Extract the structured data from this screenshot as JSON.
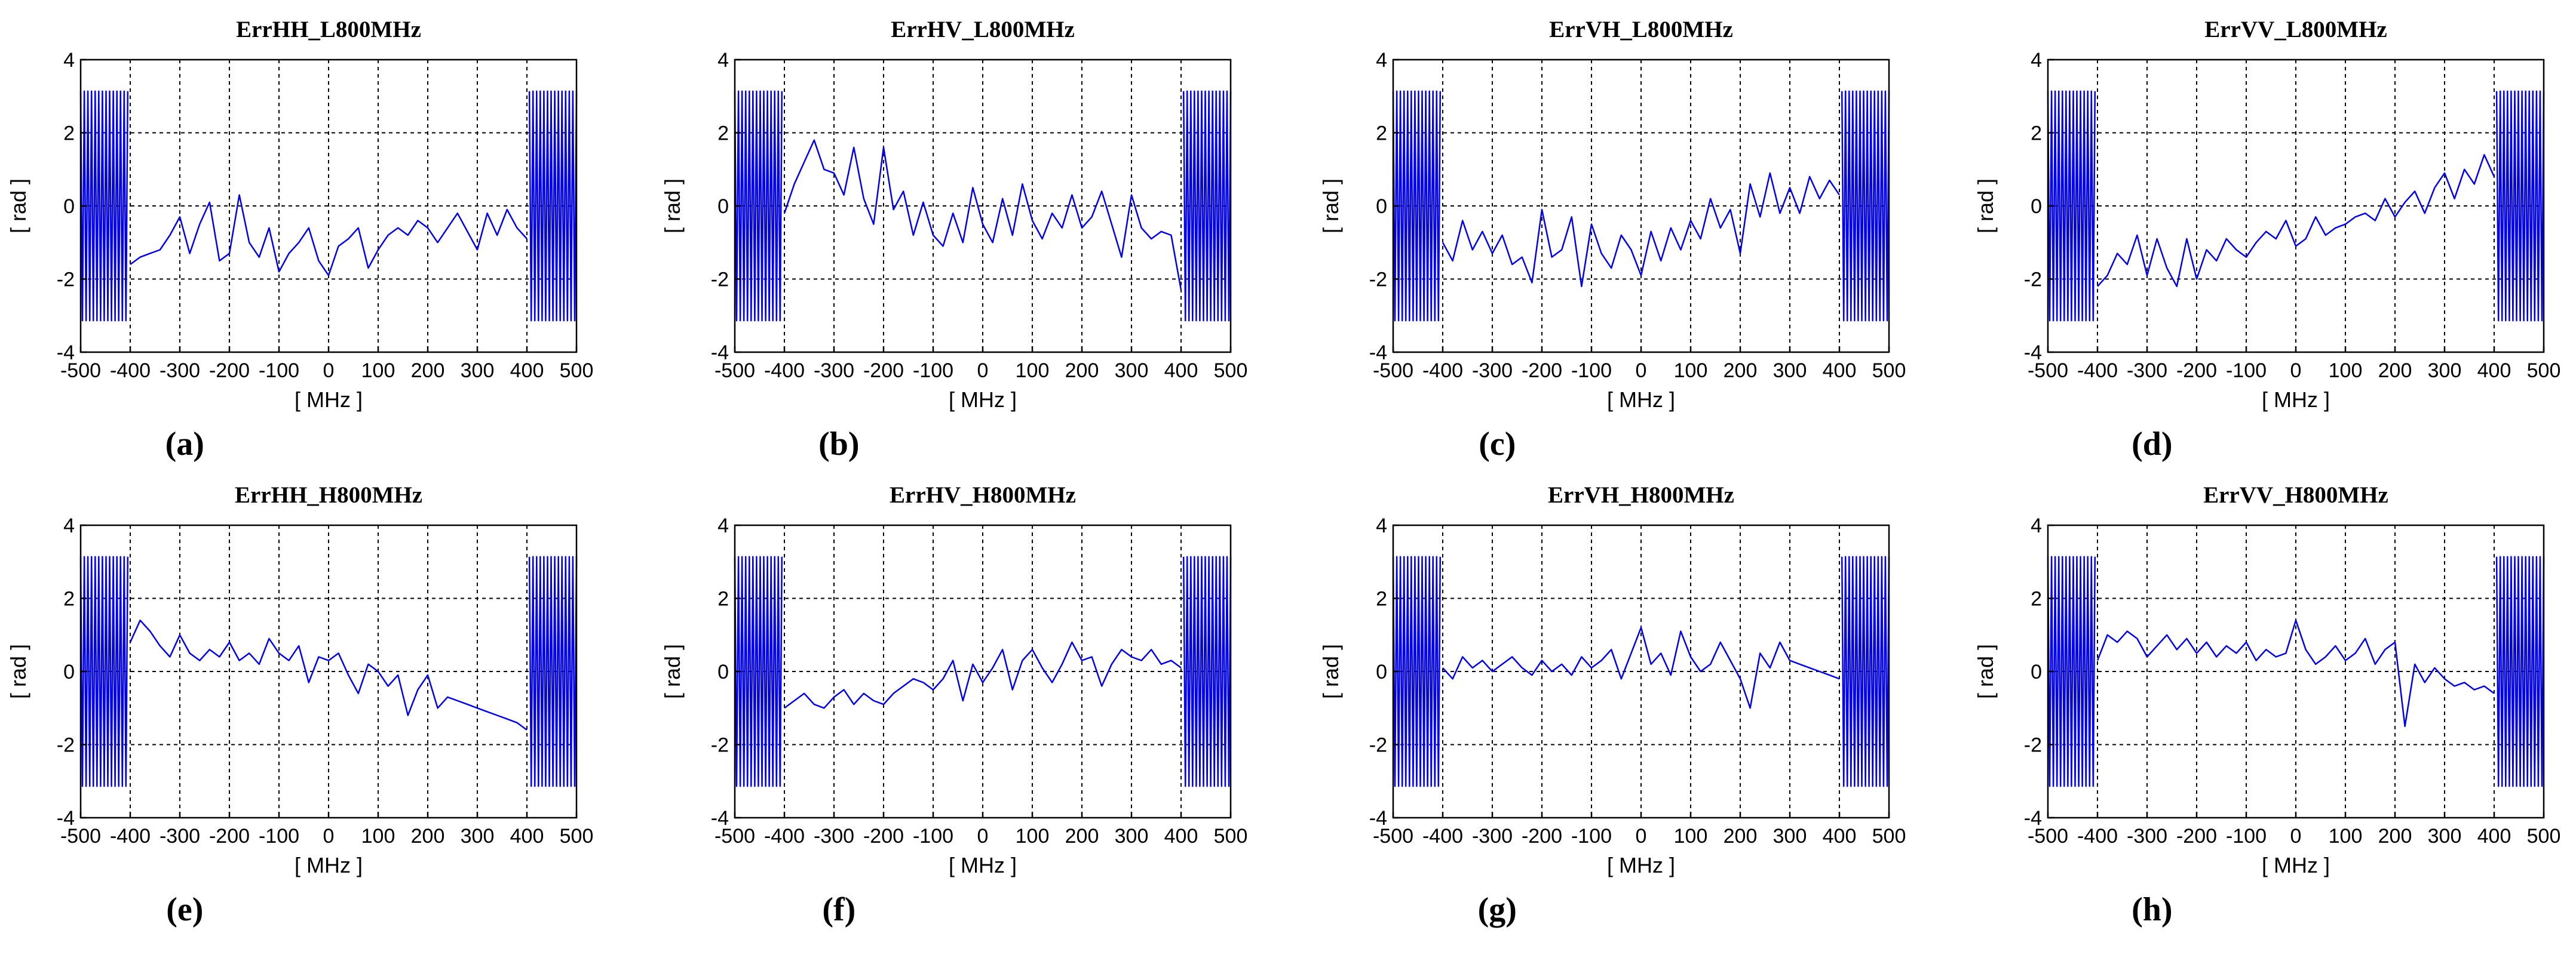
{
  "chart_data": [
    {
      "type": "line",
      "panel": "(a)",
      "title": "ErrHH_L800MHz",
      "xlabel": "[ MHz ]",
      "ylabel": "[ rad ]",
      "xlim": [
        -500,
        500
      ],
      "ylim": [
        -4,
        4
      ],
      "xticks": [
        "-500",
        "-400",
        "-300",
        "-200",
        "-100",
        "0",
        "100",
        "200",
        "300",
        "400",
        "500"
      ],
      "yticks": [
        "-4",
        "-2",
        "0",
        "2",
        "4"
      ],
      "grid": true,
      "series": [
        {
          "name": "ErrHH_L800MHz",
          "color": "#0000ee",
          "wrap": [
            [
              -500,
              -405,
              3.14,
              26
            ],
            [
              405,
              500,
              3.14,
              26
            ]
          ],
          "x": [
            -400,
            -380,
            -360,
            -340,
            -320,
            -300,
            -280,
            -260,
            -240,
            -220,
            -200,
            -180,
            -160,
            -140,
            -120,
            -100,
            -80,
            -60,
            -40,
            -20,
            0,
            20,
            40,
            60,
            80,
            100,
            120,
            140,
            160,
            180,
            200,
            220,
            240,
            260,
            280,
            300,
            320,
            340,
            360,
            380,
            400
          ],
          "y": [
            -1.6,
            -1.4,
            -1.3,
            -1.2,
            -0.8,
            -0.3,
            -1.3,
            -0.5,
            0.1,
            -1.5,
            -1.3,
            0.3,
            -1.0,
            -1.4,
            -0.6,
            -1.8,
            -1.3,
            -1.0,
            -0.6,
            -1.5,
            -1.9,
            -1.1,
            -0.9,
            -0.6,
            -1.7,
            -1.2,
            -0.8,
            -0.6,
            -0.8,
            -0.4,
            -0.6,
            -1.0,
            -0.6,
            -0.2,
            -0.7,
            -1.2,
            -0.2,
            -0.8,
            -0.1,
            -0.6,
            -0.9
          ]
        }
      ]
    },
    {
      "type": "line",
      "panel": "(b)",
      "title": "ErrHV_L800MHz",
      "xlabel": "[ MHz ]",
      "ylabel": "[ rad ]",
      "xlim": [
        -500,
        500
      ],
      "ylim": [
        -4,
        4
      ],
      "xticks": [
        "-500",
        "-400",
        "-300",
        "-200",
        "-100",
        "0",
        "100",
        "200",
        "300",
        "400",
        "500"
      ],
      "yticks": [
        "-4",
        "-2",
        "0",
        "2",
        "4"
      ],
      "grid": true,
      "series": [
        {
          "name": "ErrHV_L800MHz",
          "color": "#0000ee",
          "wrap": [
            [
              -500,
              -405,
              3.14,
              26
            ],
            [
              405,
              500,
              3.14,
              26
            ]
          ],
          "x": [
            -400,
            -380,
            -360,
            -340,
            -320,
            -300,
            -280,
            -260,
            -240,
            -220,
            -200,
            -180,
            -160,
            -140,
            -120,
            -100,
            -80,
            -60,
            -40,
            -20,
            0,
            20,
            40,
            60,
            80,
            100,
            120,
            140,
            160,
            180,
            200,
            220,
            240,
            260,
            280,
            300,
            320,
            340,
            360,
            380,
            400
          ],
          "y": [
            -0.2,
            0.6,
            1.2,
            1.8,
            1.0,
            0.9,
            0.3,
            1.6,
            0.2,
            -0.5,
            1.6,
            -0.1,
            0.4,
            -0.8,
            0.1,
            -0.8,
            -1.1,
            -0.2,
            -1.0,
            0.5,
            -0.5,
            -1.0,
            0.2,
            -0.8,
            0.6,
            -0.4,
            -0.9,
            -0.2,
            -0.6,
            0.3,
            -0.6,
            -0.3,
            0.4,
            -0.5,
            -1.4,
            0.3,
            -0.6,
            -0.9,
            -0.7,
            -0.8,
            -2.3
          ]
        }
      ]
    },
    {
      "type": "line",
      "panel": "(c)",
      "title": "ErrVH_L800MHz",
      "xlabel": "[ MHz ]",
      "ylabel": "[ rad ]",
      "xlim": [
        -500,
        500
      ],
      "ylim": [
        -4,
        4
      ],
      "xticks": [
        "-500",
        "-400",
        "-300",
        "-200",
        "-100",
        "0",
        "100",
        "200",
        "300",
        "400",
        "500"
      ],
      "yticks": [
        "-4",
        "-2",
        "0",
        "2",
        "4"
      ],
      "grid": true,
      "series": [
        {
          "name": "ErrVH_L800MHz",
          "color": "#0000ee",
          "wrap": [
            [
              -500,
              -405,
              3.14,
              26
            ],
            [
              405,
              500,
              3.14,
              26
            ]
          ],
          "x": [
            -400,
            -380,
            -360,
            -340,
            -320,
            -300,
            -280,
            -260,
            -240,
            -220,
            -200,
            -180,
            -160,
            -140,
            -120,
            -100,
            -80,
            -60,
            -40,
            -20,
            0,
            20,
            40,
            60,
            80,
            100,
            120,
            140,
            160,
            180,
            200,
            220,
            240,
            260,
            280,
            300,
            320,
            340,
            360,
            380,
            400
          ],
          "y": [
            -1.0,
            -1.5,
            -0.4,
            -1.2,
            -0.7,
            -1.3,
            -0.8,
            -1.6,
            -1.4,
            -2.1,
            -0.1,
            -1.4,
            -1.2,
            -0.3,
            -2.2,
            -0.5,
            -1.3,
            -1.7,
            -0.8,
            -1.2,
            -1.9,
            -0.7,
            -1.5,
            -0.6,
            -1.2,
            -0.4,
            -0.9,
            0.2,
            -0.6,
            -0.1,
            -1.3,
            0.6,
            -0.3,
            0.9,
            -0.2,
            0.5,
            -0.2,
            0.8,
            0.2,
            0.7,
            0.3
          ]
        }
      ]
    },
    {
      "type": "line",
      "panel": "(d)",
      "title": "ErrVV_L800MHz",
      "xlabel": "[ MHz ]",
      "ylabel": "[ rad ]",
      "xlim": [
        -500,
        500
      ],
      "ylim": [
        -4,
        4
      ],
      "xticks": [
        "-500",
        "-400",
        "-300",
        "-200",
        "-100",
        "0",
        "100",
        "200",
        "300",
        "400",
        "500"
      ],
      "yticks": [
        "-4",
        "-2",
        "0",
        "2",
        "4"
      ],
      "grid": true,
      "series": [
        {
          "name": "ErrVV_L800MHz",
          "color": "#0000ee",
          "wrap": [
            [
              -500,
              -405,
              3.14,
              26
            ],
            [
              405,
              500,
              3.14,
              26
            ]
          ],
          "x": [
            -400,
            -380,
            -360,
            -340,
            -320,
            -300,
            -280,
            -260,
            -240,
            -220,
            -200,
            -180,
            -160,
            -140,
            -120,
            -100,
            -80,
            -60,
            -40,
            -20,
            0,
            20,
            40,
            60,
            80,
            100,
            120,
            140,
            160,
            180,
            200,
            220,
            240,
            260,
            280,
            300,
            320,
            340,
            360,
            380,
            400
          ],
          "y": [
            -2.2,
            -1.9,
            -1.3,
            -1.6,
            -0.8,
            -1.9,
            -0.9,
            -1.7,
            -2.2,
            -0.9,
            -2.0,
            -1.2,
            -1.5,
            -0.9,
            -1.2,
            -1.4,
            -1.0,
            -0.7,
            -0.9,
            -0.4,
            -1.1,
            -0.9,
            -0.3,
            -0.8,
            -0.6,
            -0.5,
            -0.3,
            -0.2,
            -0.4,
            0.2,
            -0.3,
            0.1,
            0.4,
            -0.2,
            0.5,
            0.9,
            0.2,
            1.0,
            0.6,
            1.4,
            0.8
          ]
        }
      ]
    },
    {
      "type": "line",
      "panel": "(e)",
      "title": "ErrHH_H800MHz",
      "xlabel": "[ MHz ]",
      "ylabel": "[ rad ]",
      "xlim": [
        -500,
        500
      ],
      "ylim": [
        -4,
        4
      ],
      "xticks": [
        "-500",
        "-400",
        "-300",
        "-200",
        "-100",
        "0",
        "100",
        "200",
        "300",
        "400",
        "500"
      ],
      "yticks": [
        "-4",
        "-2",
        "0",
        "2",
        "4"
      ],
      "grid": true,
      "series": [
        {
          "name": "ErrHH_H800MHz",
          "color": "#0000ee",
          "wrap": [
            [
              -500,
              -405,
              3.14,
              26
            ],
            [
              405,
              500,
              3.14,
              26
            ]
          ],
          "x": [
            -400,
            -380,
            -360,
            -340,
            -320,
            -300,
            -280,
            -260,
            -240,
            -220,
            -200,
            -180,
            -160,
            -140,
            -120,
            -100,
            -80,
            -60,
            -40,
            -20,
            0,
            20,
            40,
            60,
            80,
            100,
            120,
            140,
            160,
            180,
            200,
            220,
            240,
            260,
            280,
            300,
            320,
            340,
            360,
            380,
            400
          ],
          "y": [
            0.8,
            1.4,
            1.1,
            0.7,
            0.4,
            1.0,
            0.5,
            0.3,
            0.6,
            0.4,
            0.8,
            0.3,
            0.5,
            0.2,
            0.9,
            0.5,
            0.3,
            0.7,
            -0.3,
            0.4,
            0.3,
            0.5,
            -0.1,
            -0.6,
            0.2,
            0.0,
            -0.4,
            -0.1,
            -1.2,
            -0.5,
            -0.1,
            -1.0,
            -0.7,
            -0.8,
            -0.9,
            -1.0,
            -1.1,
            -1.2,
            -1.3,
            -1.4,
            -1.6
          ]
        }
      ]
    },
    {
      "type": "line",
      "panel": "(f)",
      "title": "ErrHV_H800MHz",
      "xlabel": "[ MHz ]",
      "ylabel": "[ rad ]",
      "xlim": [
        -500,
        500
      ],
      "ylim": [
        -4,
        4
      ],
      "xticks": [
        "-500",
        "-400",
        "-300",
        "-200",
        "-100",
        "0",
        "100",
        "200",
        "300",
        "400",
        "500"
      ],
      "yticks": [
        "-4",
        "-2",
        "0",
        "2",
        "4"
      ],
      "grid": true,
      "series": [
        {
          "name": "ErrHV_H800MHz",
          "color": "#0000ee",
          "wrap": [
            [
              -500,
              -405,
              3.14,
              26
            ],
            [
              405,
              500,
              3.14,
              26
            ]
          ],
          "x": [
            -400,
            -380,
            -360,
            -340,
            -320,
            -300,
            -280,
            -260,
            -240,
            -220,
            -200,
            -180,
            -160,
            -140,
            -120,
            -100,
            -80,
            -60,
            -40,
            -20,
            0,
            20,
            40,
            60,
            80,
            100,
            120,
            140,
            160,
            180,
            200,
            220,
            240,
            260,
            280,
            300,
            320,
            340,
            360,
            380,
            400
          ],
          "y": [
            -1.0,
            -0.8,
            -0.6,
            -0.9,
            -1.0,
            -0.7,
            -0.5,
            -0.9,
            -0.6,
            -0.8,
            -0.9,
            -0.6,
            -0.4,
            -0.2,
            -0.3,
            -0.5,
            -0.2,
            0.3,
            -0.8,
            0.2,
            -0.3,
            0.1,
            0.6,
            -0.5,
            0.3,
            0.6,
            0.1,
            -0.3,
            0.2,
            0.8,
            0.3,
            0.4,
            -0.4,
            0.2,
            0.6,
            0.4,
            0.3,
            0.6,
            0.2,
            0.3,
            0.1
          ]
        }
      ]
    },
    {
      "type": "line",
      "panel": "(g)",
      "title": "ErrVH_H800MHz",
      "xlabel": "[ MHz ]",
      "ylabel": "[ rad ]",
      "xlim": [
        -500,
        500
      ],
      "ylim": [
        -4,
        4
      ],
      "xticks": [
        "-500",
        "-400",
        "-300",
        "-200",
        "-100",
        "0",
        "100",
        "200",
        "300",
        "400",
        "500"
      ],
      "yticks": [
        "-4",
        "-2",
        "0",
        "2",
        "4"
      ],
      "grid": true,
      "series": [
        {
          "name": "ErrVH_H800MHz",
          "color": "#0000ee",
          "wrap": [
            [
              -500,
              -405,
              3.14,
              26
            ],
            [
              405,
              500,
              3.14,
              26
            ]
          ],
          "x": [
            -400,
            -380,
            -360,
            -340,
            -320,
            -300,
            -280,
            -260,
            -240,
            -220,
            -200,
            -180,
            -160,
            -140,
            -120,
            -100,
            -80,
            -60,
            -40,
            -20,
            0,
            20,
            40,
            60,
            80,
            100,
            120,
            140,
            160,
            180,
            200,
            220,
            240,
            260,
            280,
            300,
            320,
            340,
            360,
            380,
            400
          ],
          "y": [
            0.1,
            -0.2,
            0.4,
            0.1,
            0.3,
            0.0,
            0.2,
            0.4,
            0.1,
            -0.1,
            0.3,
            0.0,
            0.2,
            -0.1,
            0.4,
            0.1,
            0.3,
            0.6,
            -0.2,
            0.5,
            1.2,
            0.2,
            0.5,
            -0.1,
            1.1,
            0.4,
            0.0,
            0.2,
            0.8,
            0.3,
            -0.2,
            -1.0,
            0.5,
            0.1,
            0.8,
            0.3,
            0.2,
            0.1,
            0.0,
            -0.1,
            -0.2
          ]
        }
      ]
    },
    {
      "type": "line",
      "panel": "(h)",
      "title": "ErrVV_H800MHz",
      "xlabel": "[ MHz ]",
      "ylabel": "[ rad ]",
      "xlim": [
        -500,
        500
      ],
      "ylim": [
        -4,
        4
      ],
      "xticks": [
        "-500",
        "-400",
        "-300",
        "-200",
        "-100",
        "0",
        "100",
        "200",
        "300",
        "400",
        "500"
      ],
      "yticks": [
        "-4",
        "-2",
        "0",
        "2",
        "4"
      ],
      "grid": true,
      "series": [
        {
          "name": "ErrVV_H800MHz",
          "color": "#0000ee",
          "wrap": [
            [
              -500,
              -405,
              3.14,
              26
            ],
            [
              405,
              500,
              3.14,
              26
            ]
          ],
          "x": [
            -400,
            -380,
            -360,
            -340,
            -320,
            -300,
            -280,
            -260,
            -240,
            -220,
            -200,
            -180,
            -160,
            -140,
            -120,
            -100,
            -80,
            -60,
            -40,
            -20,
            0,
            20,
            40,
            60,
            80,
            100,
            120,
            140,
            160,
            180,
            200,
            220,
            240,
            260,
            280,
            300,
            320,
            340,
            360,
            380,
            400
          ],
          "y": [
            0.3,
            1.0,
            0.8,
            1.1,
            0.9,
            0.4,
            0.7,
            1.0,
            0.6,
            0.9,
            0.5,
            0.8,
            0.4,
            0.7,
            0.5,
            0.8,
            0.3,
            0.6,
            0.4,
            0.5,
            1.4,
            0.6,
            0.2,
            0.4,
            0.7,
            0.3,
            0.5,
            0.9,
            0.2,
            0.6,
            0.8,
            -1.5,
            0.2,
            -0.3,
            0.1,
            -0.2,
            -0.4,
            -0.3,
            -0.5,
            -0.4,
            -0.6
          ]
        }
      ]
    }
  ]
}
